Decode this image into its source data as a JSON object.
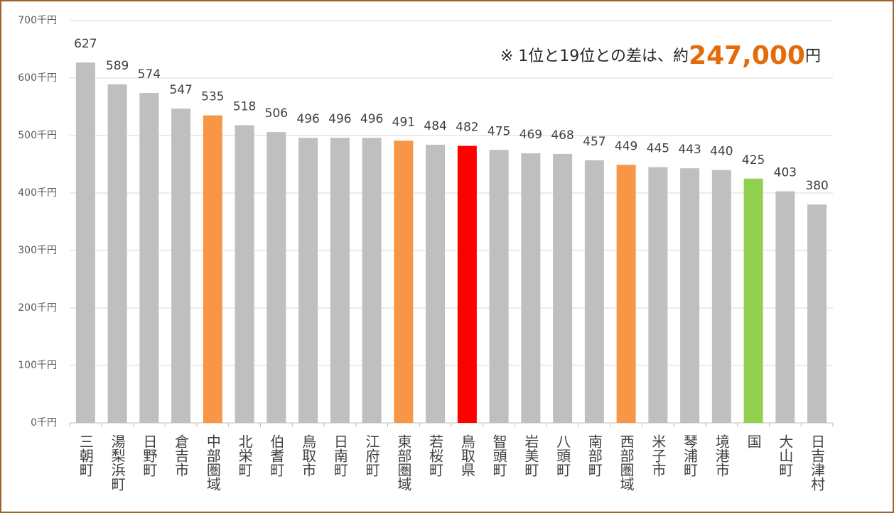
{
  "chart_data": {
    "type": "bar",
    "categories": [
      "三朝町",
      "湯梨浜町",
      "日野町",
      "倉吉市",
      "中部圏域",
      "北栄町",
      "伯耆町",
      "鳥取市",
      "日南町",
      "江府町",
      "東部圏域",
      "若桜町",
      "鳥取県",
      "智頭町",
      "岩美町",
      "八頭町",
      "南部町",
      "西部圏域",
      "米子市",
      "琴浦町",
      "境港市",
      "国",
      "大山町",
      "日吉津村"
    ],
    "values": [
      627,
      589,
      574,
      547,
      535,
      518,
      506,
      496,
      496,
      496,
      491,
      484,
      482,
      475,
      469,
      468,
      457,
      449,
      445,
      443,
      440,
      425,
      403,
      380
    ],
    "colors": [
      "#bfbfbf",
      "#bfbfbf",
      "#bfbfbf",
      "#bfbfbf",
      "#f79646",
      "#bfbfbf",
      "#bfbfbf",
      "#bfbfbf",
      "#bfbfbf",
      "#bfbfbf",
      "#f79646",
      "#bfbfbf",
      "#ff0000",
      "#bfbfbf",
      "#bfbfbf",
      "#bfbfbf",
      "#bfbfbf",
      "#f79646",
      "#bfbfbf",
      "#bfbfbf",
      "#bfbfbf",
      "#92d050",
      "#bfbfbf",
      "#bfbfbf"
    ],
    "ylim": [
      0,
      700
    ],
    "yticks": [
      {
        "value": 0,
        "label": "0千円"
      },
      {
        "value": 100,
        "label": "100千円"
      },
      {
        "value": 200,
        "label": "200千円"
      },
      {
        "value": 300,
        "label": "300千円"
      },
      {
        "value": 400,
        "label": "400千円"
      },
      {
        "value": 500,
        "label": "500千円"
      },
      {
        "value": 600,
        "label": "600千円"
      },
      {
        "value": 700,
        "label": "700千円"
      }
    ],
    "grid": true,
    "annotation": {
      "prefix": "※ 1位と19位との差は、約",
      "highlight": "247,000",
      "suffix": "円"
    }
  }
}
